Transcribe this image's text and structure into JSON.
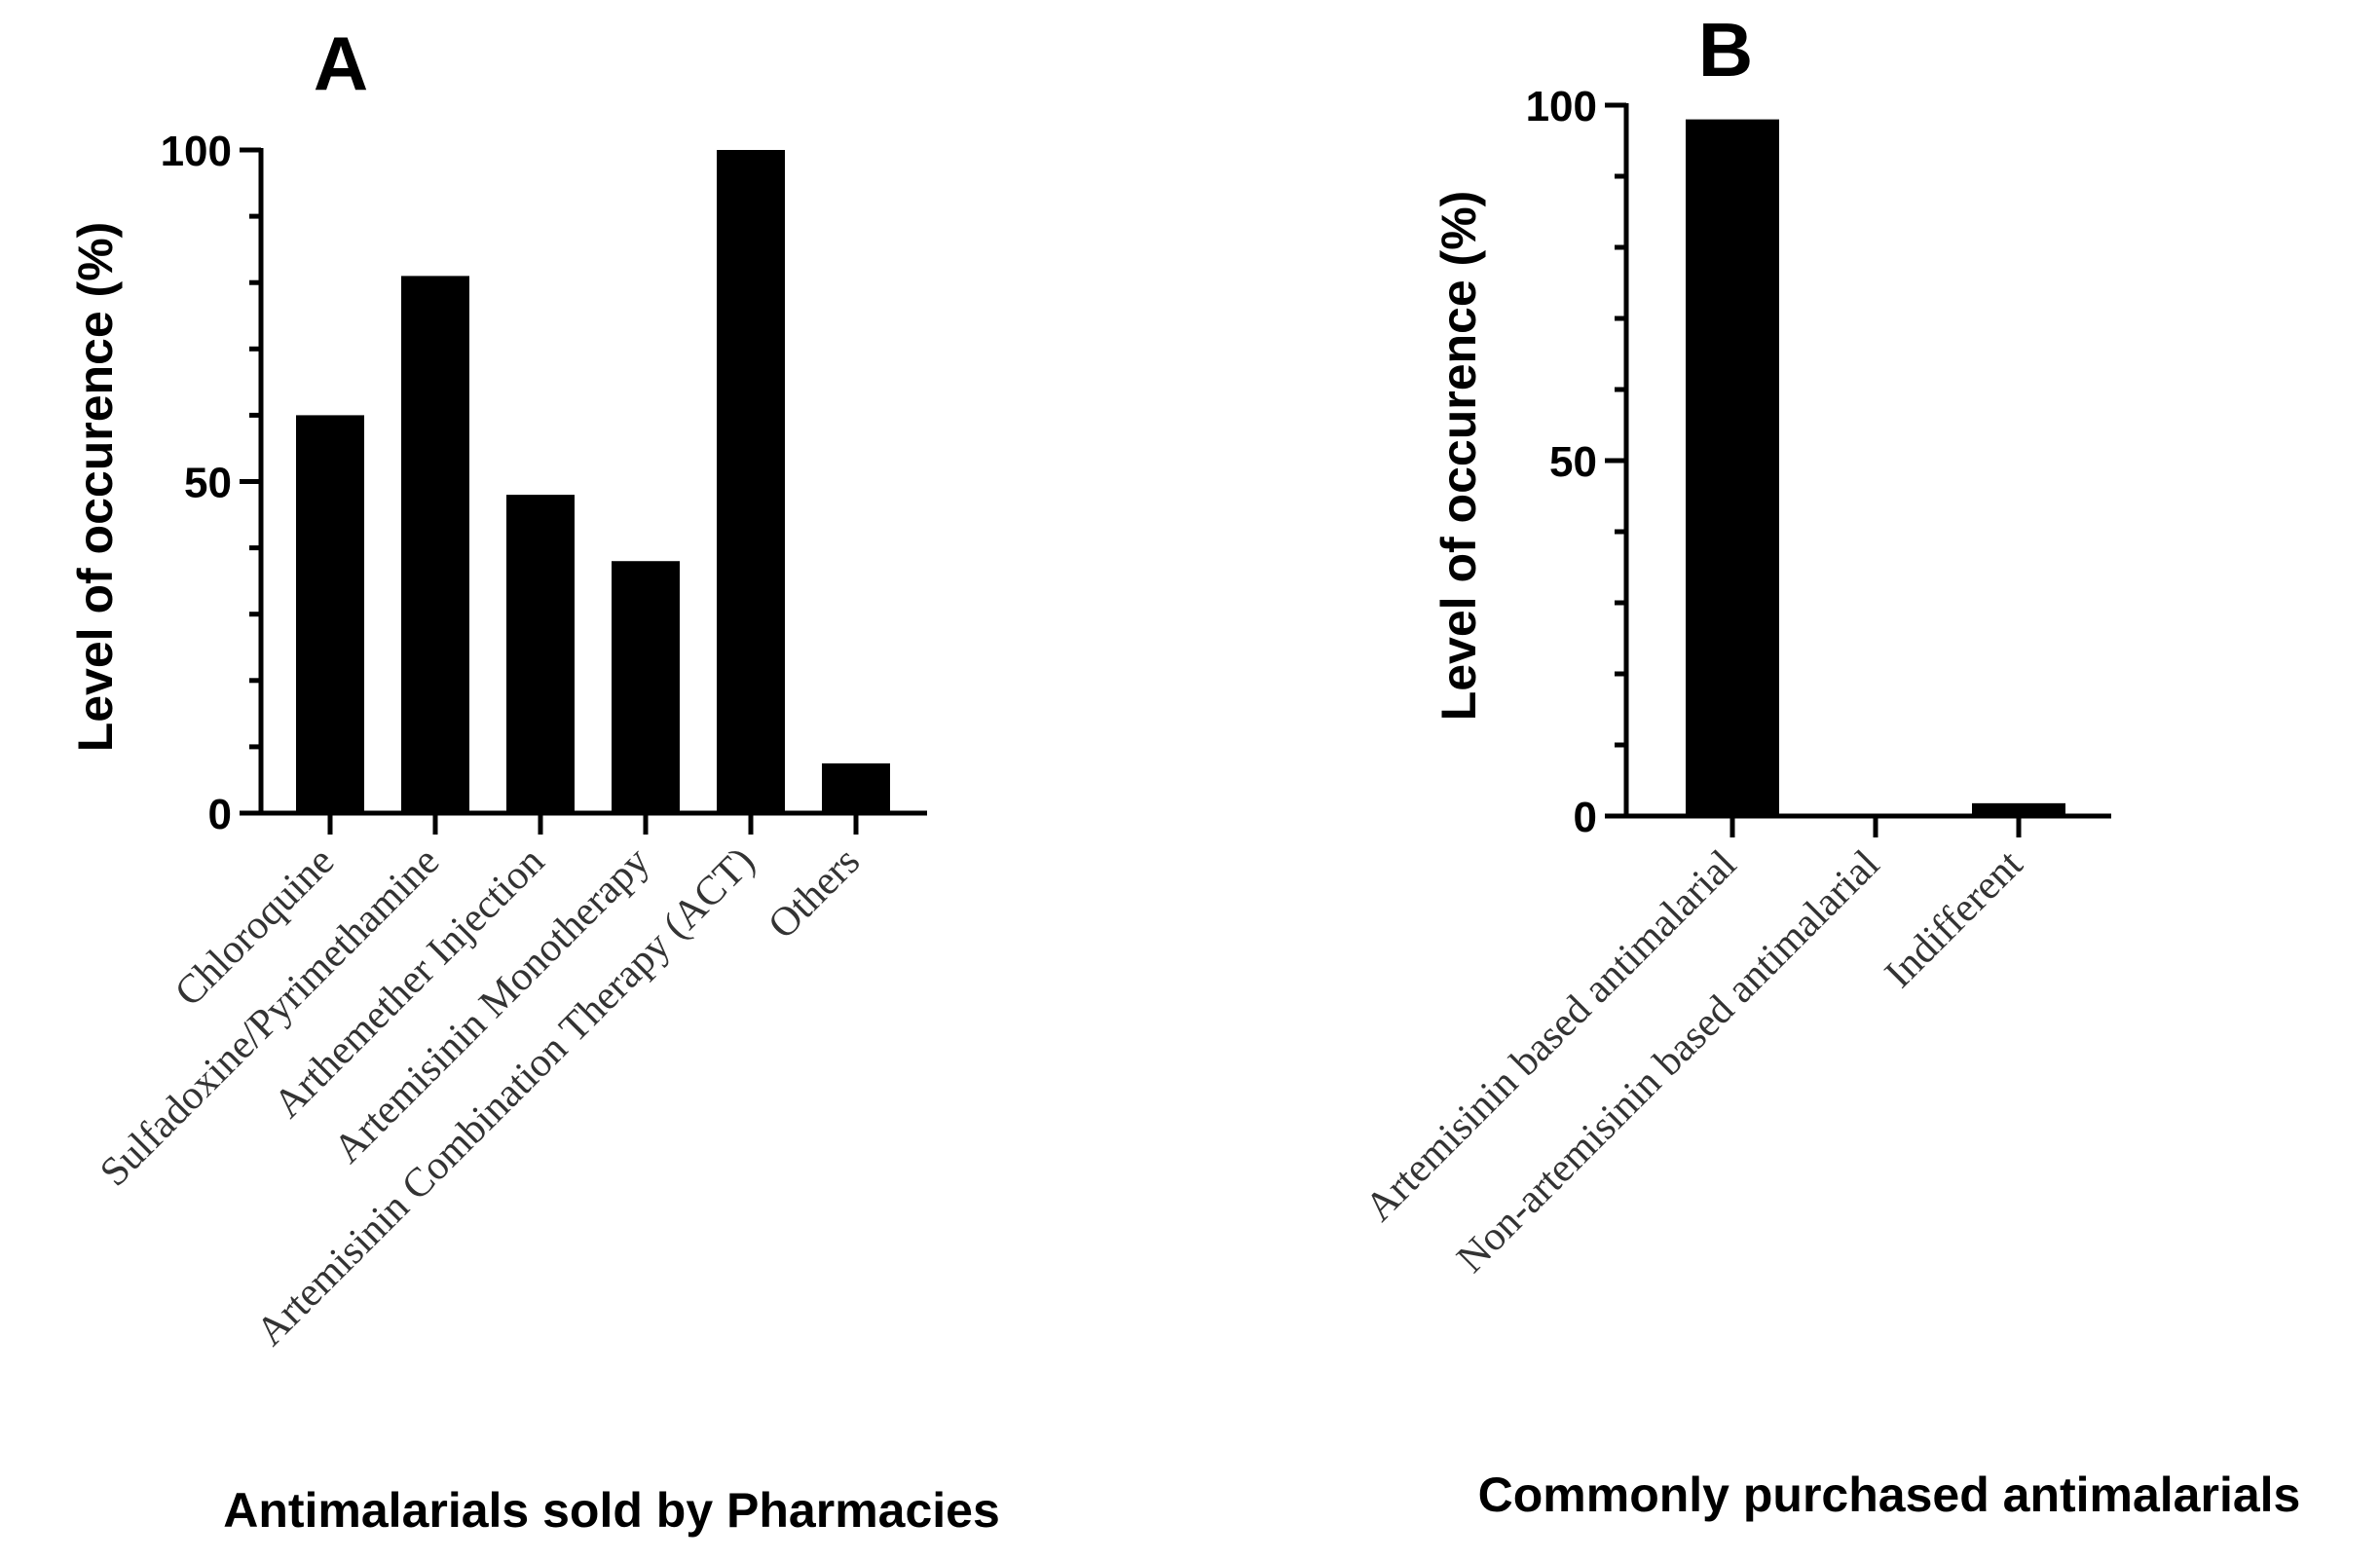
{
  "chart_data": [
    {
      "panel": "A",
      "type": "bar",
      "title": "",
      "xlabel": "Antimalarials sold by Pharmacies",
      "ylabel": "Level of occurence (%)",
      "ylim": [
        0,
        100
      ],
      "yticks": [
        0,
        50,
        100
      ],
      "grid": false,
      "categories": [
        "Chloroquine",
        "Sulfadoxine/Pyrimethamine",
        "Arthemether Injection",
        "Artemisinin Monotherapy",
        "Artemisinin Combination Therapy (ACT)",
        "Others"
      ],
      "values": [
        60,
        81,
        48,
        38,
        100,
        7.5
      ],
      "bar_color": "#000000"
    },
    {
      "panel": "B",
      "type": "bar",
      "title": "",
      "xlabel": "Commonly purchased antimalarials",
      "ylabel": "Level of occurence (%)",
      "ylim": [
        0,
        100
      ],
      "yticks": [
        0,
        50,
        100
      ],
      "grid": false,
      "categories": [
        "Artemisinin based antimalarial",
        "Non-artemisinin based antimalarial",
        "Indifferent"
      ],
      "values": [
        98,
        0,
        1.8
      ],
      "bar_color": "#000000"
    }
  ]
}
